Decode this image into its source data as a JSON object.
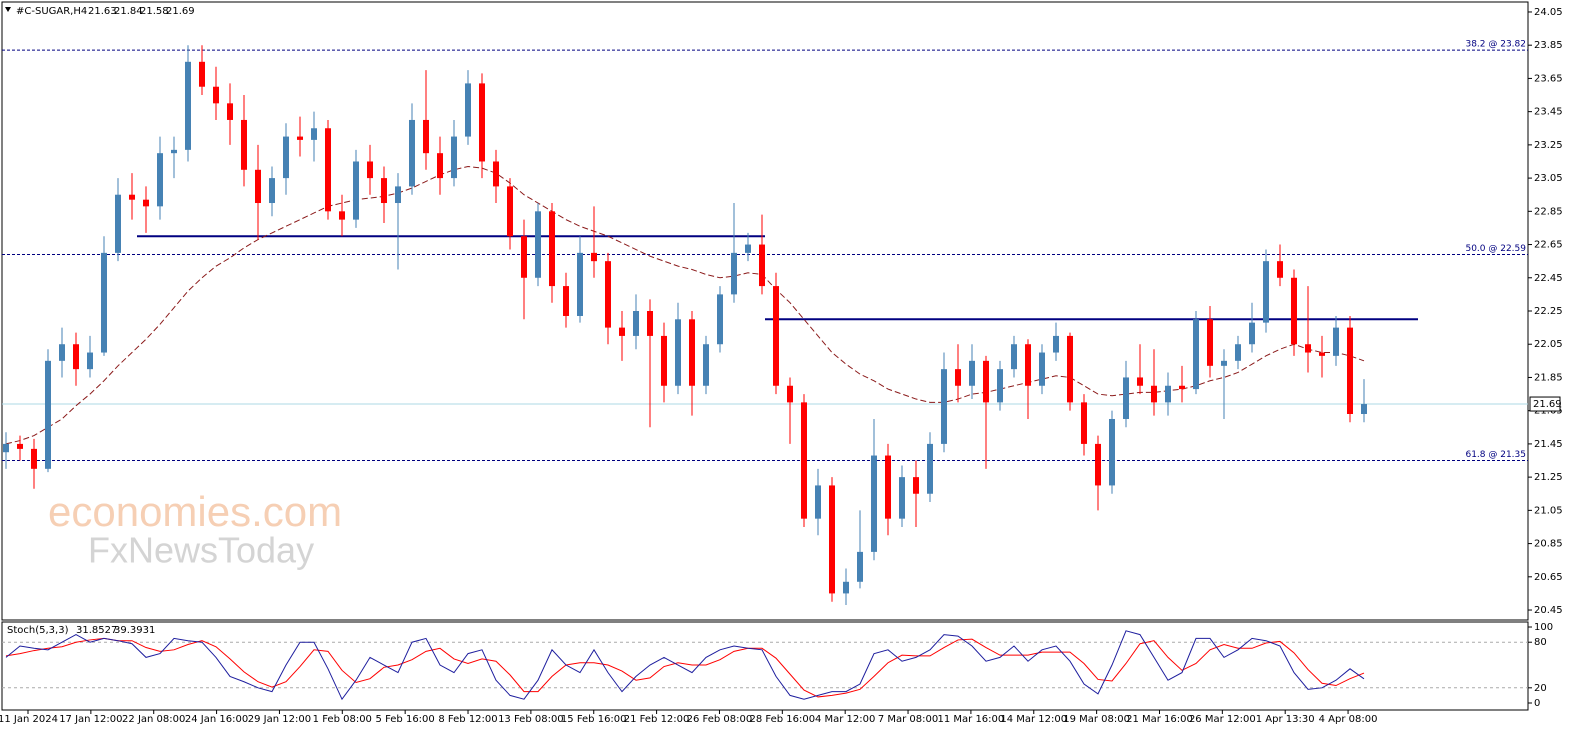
{
  "chart_data": {
    "type": "candlestick",
    "symbol": "#C-SUGAR,H4",
    "up_color": "#4682b4",
    "down_color": "#ff0000",
    "ylim": [
      20.39,
      24.11
    ],
    "yticks": [
      24.05,
      23.85,
      23.65,
      23.45,
      23.25,
      23.05,
      22.85,
      22.65,
      22.45,
      22.25,
      22.05,
      21.85,
      21.65,
      21.45,
      21.25,
      21.05,
      20.85,
      20.65,
      20.45
    ],
    "candles": [
      [
        21.4,
        21.52,
        21.3,
        21.45
      ],
      [
        21.45,
        21.5,
        21.35,
        21.42
      ],
      [
        21.42,
        21.48,
        21.18,
        21.3
      ],
      [
        21.3,
        22.02,
        21.28,
        21.95
      ],
      [
        21.95,
        22.15,
        21.85,
        22.05
      ],
      [
        22.05,
        22.12,
        21.8,
        21.9
      ],
      [
        21.9,
        22.1,
        21.85,
        22.0
      ],
      [
        22.0,
        22.7,
        21.98,
        22.6
      ],
      [
        22.6,
        23.05,
        22.55,
        22.95
      ],
      [
        22.95,
        23.08,
        22.8,
        22.92
      ],
      [
        22.92,
        23.0,
        22.72,
        22.88
      ],
      [
        22.88,
        23.3,
        22.8,
        23.2
      ],
      [
        23.2,
        23.3,
        23.05,
        23.22
      ],
      [
        23.22,
        23.85,
        23.15,
        23.75
      ],
      [
        23.75,
        23.85,
        23.55,
        23.6
      ],
      [
        23.6,
        23.72,
        23.4,
        23.5
      ],
      [
        23.5,
        23.62,
        23.25,
        23.4
      ],
      [
        23.4,
        23.55,
        23.0,
        23.1
      ],
      [
        23.1,
        23.25,
        22.68,
        22.9
      ],
      [
        22.9,
        23.12,
        22.82,
        23.05
      ],
      [
        23.05,
        23.38,
        22.95,
        23.3
      ],
      [
        23.3,
        23.42,
        23.18,
        23.28
      ],
      [
        23.28,
        23.45,
        23.15,
        23.35
      ],
      [
        23.35,
        23.4,
        22.8,
        22.85
      ],
      [
        22.85,
        22.95,
        22.7,
        22.8
      ],
      [
        22.8,
        23.22,
        22.75,
        23.15
      ],
      [
        23.15,
        23.25,
        22.95,
        23.05
      ],
      [
        23.05,
        23.12,
        22.78,
        22.9
      ],
      [
        22.9,
        23.08,
        22.5,
        23.0
      ],
      [
        23.0,
        23.5,
        22.95,
        23.4
      ],
      [
        23.4,
        23.7,
        23.1,
        23.2
      ],
      [
        23.2,
        23.3,
        22.95,
        23.05
      ],
      [
        23.05,
        23.4,
        23.0,
        23.3
      ],
      [
        23.3,
        23.7,
        23.25,
        23.62
      ],
      [
        23.62,
        23.68,
        23.05,
        23.15
      ],
      [
        23.15,
        23.22,
        22.9,
        23.0
      ],
      [
        23.0,
        23.05,
        22.62,
        22.7
      ],
      [
        22.7,
        22.8,
        22.2,
        22.45
      ],
      [
        22.45,
        22.9,
        22.4,
        22.85
      ],
      [
        22.85,
        22.9,
        22.3,
        22.4
      ],
      [
        22.4,
        22.48,
        22.15,
        22.22
      ],
      [
        22.22,
        22.7,
        22.18,
        22.6
      ],
      [
        22.6,
        22.88,
        22.45,
        22.55
      ],
      [
        22.55,
        22.6,
        22.05,
        22.15
      ],
      [
        22.15,
        22.25,
        21.95,
        22.1
      ],
      [
        22.1,
        22.35,
        22.02,
        22.25
      ],
      [
        22.25,
        22.32,
        21.55,
        22.1
      ],
      [
        22.1,
        22.18,
        21.7,
        21.8
      ],
      [
        21.8,
        22.3,
        21.75,
        22.2
      ],
      [
        22.2,
        22.25,
        21.62,
        21.8
      ],
      [
        21.8,
        22.1,
        21.75,
        22.05
      ],
      [
        22.05,
        22.4,
        22.0,
        22.35
      ],
      [
        22.35,
        22.9,
        22.3,
        22.6
      ],
      [
        22.6,
        22.72,
        22.55,
        22.65
      ],
      [
        22.65,
        22.83,
        22.35,
        22.4
      ],
      [
        22.4,
        22.48,
        21.75,
        21.8
      ],
      [
        21.8,
        21.85,
        21.45,
        21.7
      ],
      [
        21.7,
        21.75,
        20.95,
        21.0
      ],
      [
        21.0,
        21.3,
        20.9,
        21.2
      ],
      [
        21.2,
        21.25,
        20.5,
        20.55
      ],
      [
        20.55,
        20.7,
        20.48,
        20.62
      ],
      [
        20.62,
        21.05,
        20.58,
        20.8
      ],
      [
        20.8,
        21.6,
        20.75,
        21.38
      ],
      [
        21.38,
        21.45,
        20.9,
        21.0
      ],
      [
        21.0,
        21.32,
        20.95,
        21.25
      ],
      [
        21.25,
        21.35,
        20.95,
        21.15
      ],
      [
        21.15,
        21.52,
        21.1,
        21.45
      ],
      [
        21.45,
        22.0,
        21.4,
        21.9
      ],
      [
        21.9,
        22.05,
        21.7,
        21.8
      ],
      [
        21.8,
        22.05,
        21.72,
        21.95
      ],
      [
        21.95,
        21.98,
        21.3,
        21.7
      ],
      [
        21.7,
        21.95,
        21.65,
        21.9
      ],
      [
        21.9,
        22.1,
        21.85,
        22.05
      ],
      [
        22.05,
        22.08,
        21.6,
        21.8
      ],
      [
        21.8,
        22.05,
        21.75,
        22.0
      ],
      [
        22.0,
        22.18,
        21.95,
        22.1
      ],
      [
        22.1,
        22.12,
        21.65,
        21.7
      ],
      [
        21.7,
        21.75,
        21.38,
        21.45
      ],
      [
        21.45,
        21.5,
        21.05,
        21.2
      ],
      [
        21.2,
        21.65,
        21.15,
        21.6
      ],
      [
        21.6,
        21.95,
        21.55,
        21.85
      ],
      [
        21.85,
        22.05,
        21.75,
        21.8
      ],
      [
        21.8,
        22.02,
        21.62,
        21.7
      ],
      [
        21.7,
        21.88,
        21.62,
        21.8
      ],
      [
        21.8,
        21.92,
        21.7,
        21.78
      ],
      [
        21.78,
        22.25,
        21.75,
        22.2
      ],
      [
        22.2,
        22.28,
        21.85,
        21.92
      ],
      [
        21.92,
        22.02,
        21.6,
        21.95
      ],
      [
        21.95,
        22.1,
        21.9,
        22.05
      ],
      [
        22.05,
        22.3,
        22.0,
        22.18
      ],
      [
        22.18,
        22.62,
        22.12,
        22.55
      ],
      [
        22.55,
        22.65,
        22.4,
        22.45
      ],
      [
        22.45,
        22.5,
        21.98,
        22.05
      ],
      [
        22.05,
        22.4,
        21.88,
        22.0
      ],
      [
        22.0,
        22.1,
        21.85,
        21.98
      ],
      [
        21.98,
        22.22,
        21.92,
        22.15
      ],
      [
        22.15,
        22.22,
        21.58,
        21.63
      ],
      [
        21.63,
        21.84,
        21.58,
        21.69
      ]
    ],
    "ma": {
      "color": "#8b1a1a",
      "values": [
        21.45,
        21.47,
        21.5,
        21.55,
        21.6,
        21.68,
        21.75,
        21.83,
        21.92,
        22.0,
        22.08,
        22.17,
        22.27,
        22.37,
        22.45,
        22.52,
        22.57,
        22.63,
        22.68,
        22.72,
        22.76,
        22.8,
        22.84,
        22.88,
        22.9,
        22.92,
        22.93,
        22.94,
        22.96,
        22.99,
        23.03,
        23.07,
        23.1,
        23.12,
        23.11,
        23.08,
        23.02,
        22.95,
        22.9,
        22.85,
        22.8,
        22.76,
        22.73,
        22.7,
        22.66,
        22.62,
        22.58,
        22.55,
        22.52,
        22.5,
        22.47,
        22.45,
        22.46,
        22.48,
        22.47,
        22.38,
        22.3,
        22.2,
        22.1,
        22.0,
        21.93,
        21.87,
        21.83,
        21.78,
        21.75,
        21.72,
        21.7,
        21.7,
        21.72,
        21.75,
        21.76,
        21.78,
        21.8,
        21.82,
        21.84,
        21.86,
        21.85,
        21.8,
        21.75,
        21.74,
        21.75,
        21.76,
        21.76,
        21.77,
        21.78,
        21.8,
        21.83,
        21.85,
        21.88,
        21.93,
        21.98,
        22.02,
        22.05,
        22.02,
        22.0,
        22.0,
        21.98,
        21.95
      ]
    },
    "levels": [
      {
        "value": 22.7,
        "color": "#000080"
      },
      {
        "value": 22.2,
        "color": "#000080"
      }
    ],
    "fib_levels": [
      {
        "label": "38.2 @ 23.82",
        "value": 23.82
      },
      {
        "label": "50.0 @ 22.59",
        "value": 22.59
      },
      {
        "label": "61.8 @ 21.35",
        "value": 21.35
      }
    ],
    "last_price": 21.69,
    "watermark": [
      "economies.com",
      "FxNewsToday"
    ],
    "time_labels": [
      "11 Jan 2024",
      "17 Jan 12:00",
      "22 Jan 08:00",
      "24 Jan 16:00",
      "29 Jan 12:00",
      "1 Feb 08:00",
      "5 Feb 16:00",
      "8 Feb 12:00",
      "13 Feb 08:00",
      "15 Feb 16:00",
      "21 Feb 12:00",
      "26 Feb 08:00",
      "28 Feb 16:00",
      "4 Mar 12:00",
      "7 Mar 08:00",
      "11 Mar 16:00",
      "14 Mar 12:00",
      "19 Mar 08:00",
      "21 Mar 16:00",
      "26 Mar 12:00",
      "1 Apr 13:30",
      "4 Apr 08:00"
    ],
    "stoch": {
      "label": "Stoch(5,3,3)",
      "k_last": 31.8527,
      "d_last": 39.3931,
      "ylim": [
        -9.2,
        106.6
      ],
      "yticks": [
        100,
        80,
        20,
        0
      ],
      "levels": [
        80,
        20
      ],
      "k": {
        "color": "#1e1e9e",
        "values": [
          60,
          75,
          72,
          70,
          80,
          90,
          80,
          85,
          82,
          78,
          60,
          65,
          85,
          82,
          80,
          60,
          35,
          28,
          20,
          15,
          50,
          80,
          80,
          45,
          5,
          30,
          60,
          50,
          40,
          80,
          85,
          50,
          40,
          65,
          70,
          30,
          10,
          5,
          30,
          70,
          50,
          40,
          70,
          40,
          15,
          35,
          50,
          60,
          50,
          40,
          60,
          70,
          75,
          72,
          70,
          35,
          10,
          5,
          10,
          15,
          15,
          25,
          65,
          70,
          55,
          60,
          70,
          90,
          88,
          75,
          55,
          60,
          75,
          55,
          70,
          75,
          55,
          25,
          12,
          50,
          95,
          90,
          60,
          30,
          40,
          85,
          85,
          60,
          70,
          85,
          82,
          75,
          40,
          18,
          20,
          30,
          45,
          31.85
        ]
      },
      "d": {
        "color": "#ff0000",
        "values": [
          62,
          65,
          69,
          72,
          74,
          80,
          83,
          85,
          82,
          82,
          73,
          68,
          70,
          77,
          82,
          74,
          58,
          41,
          28,
          21,
          28,
          48,
          70,
          68,
          43,
          27,
          32,
          47,
          50,
          57,
          68,
          72,
          58,
          52,
          58,
          55,
          37,
          15,
          15,
          35,
          50,
          53,
          53,
          50,
          42,
          30,
          33,
          48,
          53,
          50,
          50,
          57,
          68,
          72,
          72,
          59,
          38,
          17,
          8,
          10,
          13,
          18,
          35,
          53,
          63,
          62,
          62,
          73,
          83,
          84,
          73,
          63,
          63,
          63,
          67,
          67,
          67,
          52,
          31,
          29,
          52,
          78,
          82,
          60,
          43,
          52,
          70,
          77,
          72,
          72,
          79,
          81,
          66,
          44,
          26,
          23,
          32,
          39.39
        ]
      }
    }
  }
}
